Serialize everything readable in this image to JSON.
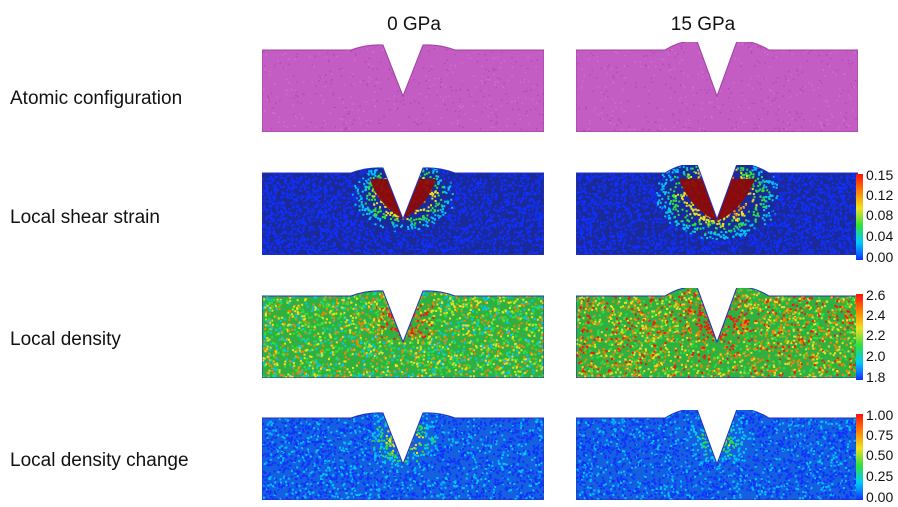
{
  "columns": [
    "0 GPa",
    "15 GPa"
  ],
  "rows": [
    {
      "label": "Atomic configuration"
    },
    {
      "label": "Local shear strain",
      "colorbar": [
        "0.15",
        "0.12",
        "0.08",
        "0.04",
        "0.00"
      ]
    },
    {
      "label": "Local density",
      "colorbar": [
        "2.6",
        "2.4",
        "2.2",
        "2.0",
        "1.8"
      ]
    },
    {
      "label": "Local density change",
      "colorbar": [
        "1.00",
        "0.75",
        "0.50",
        "0.25",
        "0.00"
      ]
    }
  ],
  "colors": {
    "atomic": "#c35cc3",
    "cmap": [
      "#1030ff",
      "#00c8ff",
      "#30e040",
      "#f0e020",
      "#ff8000",
      "#ff1010"
    ],
    "deformed_zone": "#8a0a0a"
  }
}
